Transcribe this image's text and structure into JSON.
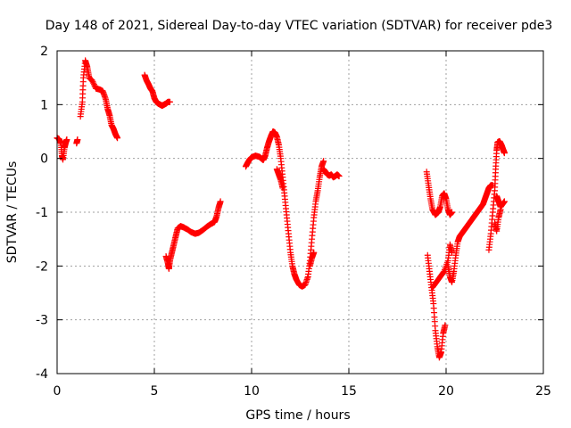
{
  "chart_data": {
    "type": "scatter",
    "title": "Day 148 of 2021, Sidereal Day-to-day VTEC variation (SDTVAR) for receiver pde3",
    "xlabel": "GPS time / hours",
    "ylabel": "SDTVAR / TECUs",
    "xlim": [
      0,
      25
    ],
    "ylim": [
      -4,
      2
    ],
    "xticks": [
      0,
      5,
      10,
      15,
      20,
      25
    ],
    "yticks": [
      -4,
      -3,
      -2,
      -1,
      0,
      1,
      2
    ],
    "xtick_labels": [
      "0",
      "5",
      "10",
      "15",
      "20",
      "25"
    ],
    "ytick_labels": [
      "-4",
      "-3",
      "-2",
      "-1",
      "0",
      "1",
      "2"
    ],
    "grid": true,
    "marker": "+",
    "color": "#ff0000",
    "series": [
      {
        "name": "SDTVAR",
        "segments": [
          [
            [
              0.0,
              0.38
            ],
            [
              0.1,
              0.36
            ],
            [
              0.2,
              0.28
            ],
            [
              0.25,
              0.05
            ],
            [
              0.3,
              -0.02
            ],
            [
              0.38,
              0.2
            ],
            [
              0.45,
              0.3
            ],
            [
              0.5,
              0.35
            ]
          ],
          [
            [
              1.0,
              0.28
            ],
            [
              1.05,
              0.35
            ]
          ],
          [
            [
              1.2,
              0.78
            ],
            [
              1.3,
              1.05
            ],
            [
              1.35,
              1.5
            ],
            [
              1.45,
              1.82
            ],
            [
              1.55,
              1.7
            ],
            [
              1.65,
              1.5
            ],
            [
              1.8,
              1.45
            ],
            [
              2.0,
              1.3
            ],
            [
              2.2,
              1.28
            ],
            [
              2.35,
              1.25
            ],
            [
              2.5,
              1.1
            ],
            [
              2.6,
              0.92
            ],
            [
              2.7,
              0.8
            ],
            [
              2.8,
              0.62
            ],
            [
              2.9,
              0.55
            ],
            [
              3.0,
              0.45
            ],
            [
              3.1,
              0.38
            ]
          ],
          [
            [
              4.5,
              1.55
            ],
            [
              4.6,
              1.45
            ],
            [
              4.7,
              1.38
            ],
            [
              4.8,
              1.3
            ],
            [
              4.9,
              1.25
            ],
            [
              5.0,
              1.12
            ],
            [
              5.1,
              1.05
            ],
            [
              5.2,
              1.02
            ],
            [
              5.3,
              1.0
            ],
            [
              5.4,
              0.98
            ],
            [
              5.5,
              1.0
            ],
            [
              5.6,
              1.02
            ],
            [
              5.7,
              1.05
            ],
            [
              5.8,
              1.05
            ]
          ],
          [
            [
              5.6,
              -1.82
            ],
            [
              5.7,
              -1.95
            ],
            [
              5.75,
              -2.05
            ],
            [
              5.8,
              -1.9
            ],
            [
              5.9,
              -1.75
            ],
            [
              6.0,
              -1.6
            ],
            [
              6.1,
              -1.45
            ],
            [
              6.2,
              -1.3
            ],
            [
              6.35,
              -1.26
            ],
            [
              6.5,
              -1.28
            ],
            [
              6.7,
              -1.32
            ],
            [
              6.9,
              -1.37
            ],
            [
              7.1,
              -1.4
            ],
            [
              7.3,
              -1.38
            ],
            [
              7.5,
              -1.33
            ],
            [
              7.7,
              -1.27
            ],
            [
              7.9,
              -1.22
            ],
            [
              8.1,
              -1.18
            ],
            [
              8.2,
              -1.08
            ],
            [
              8.3,
              -0.92
            ],
            [
              8.4,
              -0.8
            ]
          ],
          [
            [
              9.7,
              -0.15
            ],
            [
              9.8,
              -0.08
            ],
            [
              9.9,
              -0.02
            ],
            [
              10.0,
              0.02
            ],
            [
              10.2,
              0.05
            ],
            [
              10.4,
              0.03
            ],
            [
              10.5,
              0.0
            ],
            [
              10.6,
              -0.03
            ],
            [
              10.7,
              0.05
            ],
            [
              10.8,
              0.2
            ],
            [
              10.9,
              0.32
            ],
            [
              11.0,
              0.42
            ],
            [
              11.1,
              0.5
            ],
            [
              11.2,
              0.48
            ],
            [
              11.3,
              0.4
            ],
            [
              11.4,
              0.25
            ],
            [
              11.5,
              0.0
            ],
            [
              11.6,
              -0.35
            ],
            [
              11.7,
              -0.7
            ],
            [
              11.8,
              -1.05
            ],
            [
              11.9,
              -1.4
            ],
            [
              12.0,
              -1.75
            ],
            [
              12.1,
              -2.0
            ],
            [
              12.2,
              -2.15
            ],
            [
              12.3,
              -2.25
            ],
            [
              12.45,
              -2.35
            ],
            [
              12.6,
              -2.38
            ],
            [
              12.75,
              -2.35
            ],
            [
              12.9,
              -2.2
            ],
            [
              13.0,
              -1.9
            ],
            [
              13.1,
              -1.5
            ],
            [
              13.2,
              -1.1
            ],
            [
              13.3,
              -0.8
            ],
            [
              13.4,
              -0.6
            ],
            [
              13.5,
              -0.35
            ],
            [
              13.6,
              -0.15
            ],
            [
              13.7,
              -0.05
            ]
          ],
          [
            [
              11.3,
              -0.2
            ],
            [
              11.4,
              -0.3
            ],
            [
              11.5,
              -0.4
            ],
            [
              11.6,
              -0.55
            ]
          ],
          [
            [
              13.0,
              -2.0
            ],
            [
              13.1,
              -1.85
            ],
            [
              13.2,
              -1.75
            ]
          ],
          [
            [
              13.7,
              -0.2
            ],
            [
              13.8,
              -0.25
            ],
            [
              13.9,
              -0.3
            ],
            [
              14.0,
              -0.32
            ],
            [
              14.1,
              -0.3
            ],
            [
              14.2,
              -0.35
            ],
            [
              14.3,
              -0.33
            ],
            [
              14.4,
              -0.3
            ],
            [
              14.5,
              -0.33
            ]
          ],
          [
            [
              19.0,
              -0.25
            ],
            [
              19.1,
              -0.5
            ],
            [
              19.2,
              -0.75
            ],
            [
              19.3,
              -0.95
            ],
            [
              19.45,
              -1.05
            ],
            [
              19.6,
              -1.0
            ],
            [
              19.7,
              -0.9
            ],
            [
              19.8,
              -0.7
            ],
            [
              19.9,
              -0.65
            ],
            [
              20.0,
              -0.75
            ],
            [
              20.1,
              -0.95
            ],
            [
              20.2,
              -1.05
            ],
            [
              20.3,
              -1.0
            ]
          ],
          [
            [
              19.05,
              -1.8
            ],
            [
              19.15,
              -2.1
            ],
            [
              19.25,
              -2.4
            ],
            [
              19.35,
              -2.7
            ],
            [
              19.45,
              -3.2
            ],
            [
              19.55,
              -3.5
            ],
            [
              19.65,
              -3.7
            ],
            [
              19.75,
              -3.6
            ],
            [
              19.85,
              -3.25
            ],
            [
              19.95,
              -3.1
            ]
          ],
          [
            [
              19.3,
              -2.4
            ],
            [
              19.5,
              -2.3
            ],
            [
              19.7,
              -2.2
            ],
            [
              19.9,
              -2.1
            ],
            [
              20.1,
              -1.9
            ],
            [
              20.2,
              -1.6
            ],
            [
              20.3,
              -1.75
            ]
          ],
          [
            [
              20.1,
              -2.0
            ],
            [
              20.2,
              -2.2
            ],
            [
              20.3,
              -2.3
            ],
            [
              20.4,
              -2.1
            ],
            [
              20.5,
              -1.8
            ],
            [
              20.6,
              -1.55
            ],
            [
              20.7,
              -1.45
            ],
            [
              20.8,
              -1.4
            ],
            [
              20.9,
              -1.35
            ],
            [
              21.0,
              -1.3
            ],
            [
              21.1,
              -1.25
            ],
            [
              21.2,
              -1.2
            ],
            [
              21.3,
              -1.15
            ],
            [
              21.4,
              -1.1
            ],
            [
              21.5,
              -1.05
            ],
            [
              21.6,
              -1.0
            ],
            [
              21.7,
              -0.95
            ],
            [
              21.8,
              -0.9
            ],
            [
              21.9,
              -0.85
            ],
            [
              22.0,
              -0.75
            ],
            [
              22.1,
              -0.65
            ],
            [
              22.2,
              -0.55
            ],
            [
              22.3,
              -0.5
            ],
            [
              22.4,
              -0.5
            ]
          ],
          [
            [
              22.2,
              -1.7
            ],
            [
              22.3,
              -1.4
            ],
            [
              22.4,
              -1.0
            ],
            [
              22.5,
              -0.6
            ],
            [
              22.55,
              -0.2
            ],
            [
              22.6,
              0.15
            ],
            [
              22.65,
              0.3
            ],
            [
              22.75,
              0.32
            ],
            [
              22.85,
              0.25
            ],
            [
              22.95,
              0.15
            ],
            [
              23.0,
              0.1
            ]
          ],
          [
            [
              22.6,
              -0.7
            ],
            [
              22.7,
              -0.8
            ],
            [
              22.8,
              -0.9
            ],
            [
              22.9,
              -0.85
            ],
            [
              23.0,
              -0.8
            ]
          ],
          [
            [
              22.5,
              -1.2
            ],
            [
              22.6,
              -1.35
            ],
            [
              22.7,
              -1.1
            ],
            [
              22.8,
              -0.95
            ]
          ]
        ]
      }
    ]
  }
}
